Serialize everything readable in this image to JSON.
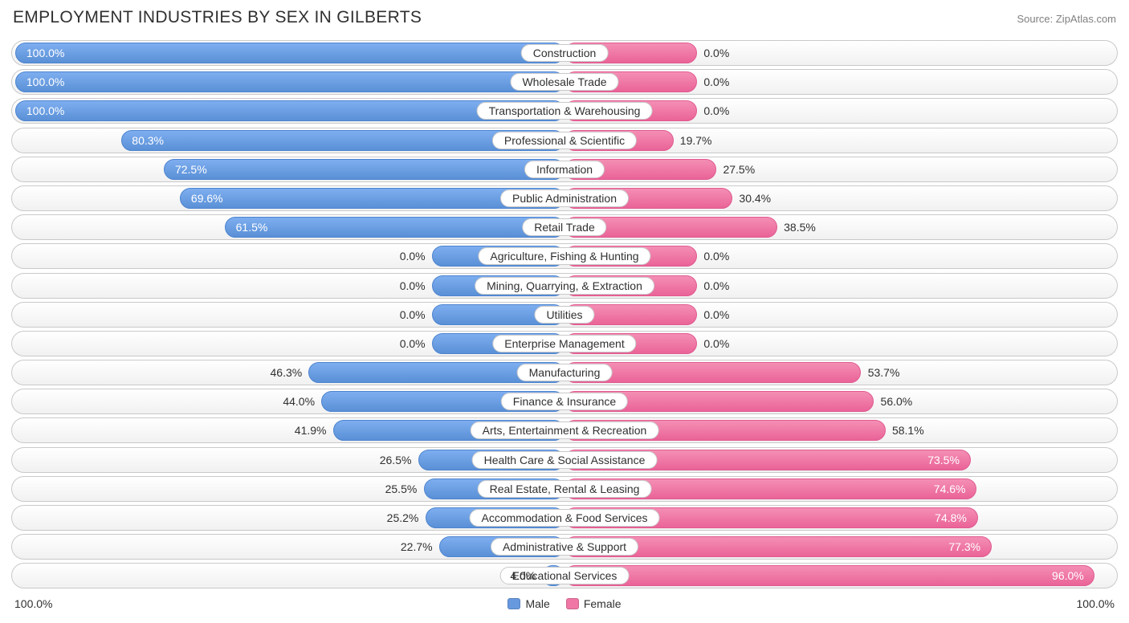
{
  "title": "EMPLOYMENT INDUSTRIES BY SEX IN GILBERTS",
  "source": "Source: ZipAtlas.com",
  "chart": {
    "type": "diverging-bar",
    "male_color": "#6799df",
    "male_border": "#4d84cf",
    "female_color": "#ef76a5",
    "female_border": "#e05a90",
    "track_bg_top": "#ffffff",
    "track_bg_bottom": "#f1f1f1",
    "track_border": "#c9c9c9",
    "label_bg": "#ffffff",
    "text_color": "#303030",
    "font_size": 14,
    "title_font_size": 21,
    "title_color": "#303030",
    "source_color": "#808080",
    "small_extent_pct": 12,
    "axis_left_label": "100.0%",
    "axis_right_label": "100.0%",
    "legend": [
      {
        "label": "Male",
        "color": "#6799df"
      },
      {
        "label": "Female",
        "color": "#ef76a5"
      }
    ],
    "rows": [
      {
        "category": "Construction",
        "male": 100.0,
        "female": 0.0,
        "small": true
      },
      {
        "category": "Wholesale Trade",
        "male": 100.0,
        "female": 0.0,
        "small": true
      },
      {
        "category": "Transportation & Warehousing",
        "male": 100.0,
        "female": 0.0,
        "small": true
      },
      {
        "category": "Professional & Scientific",
        "male": 80.3,
        "female": 19.7,
        "small": false
      },
      {
        "category": "Information",
        "male": 72.5,
        "female": 27.5,
        "small": false
      },
      {
        "category": "Public Administration",
        "male": 69.6,
        "female": 30.4,
        "small": false
      },
      {
        "category": "Retail Trade",
        "male": 61.5,
        "female": 38.5,
        "small": false
      },
      {
        "category": "Agriculture, Fishing & Hunting",
        "male": 0.0,
        "female": 0.0,
        "small": true
      },
      {
        "category": "Mining, Quarrying, & Extraction",
        "male": 0.0,
        "female": 0.0,
        "small": true
      },
      {
        "category": "Utilities",
        "male": 0.0,
        "female": 0.0,
        "small": true
      },
      {
        "category": "Enterprise Management",
        "male": 0.0,
        "female": 0.0,
        "small": true
      },
      {
        "category": "Manufacturing",
        "male": 46.3,
        "female": 53.7,
        "small": false
      },
      {
        "category": "Finance & Insurance",
        "male": 44.0,
        "female": 56.0,
        "small": false
      },
      {
        "category": "Arts, Entertainment & Recreation",
        "male": 41.9,
        "female": 58.1,
        "small": false
      },
      {
        "category": "Health Care & Social Assistance",
        "male": 26.5,
        "female": 73.5,
        "small": false
      },
      {
        "category": "Real Estate, Rental & Leasing",
        "male": 25.5,
        "female": 74.6,
        "small": false
      },
      {
        "category": "Accommodation & Food Services",
        "male": 25.2,
        "female": 74.8,
        "small": false
      },
      {
        "category": "Administrative & Support",
        "male": 22.7,
        "female": 77.3,
        "small": false
      },
      {
        "category": "Educational Services",
        "male": 4.0,
        "female": 96.0,
        "small": false
      }
    ]
  }
}
